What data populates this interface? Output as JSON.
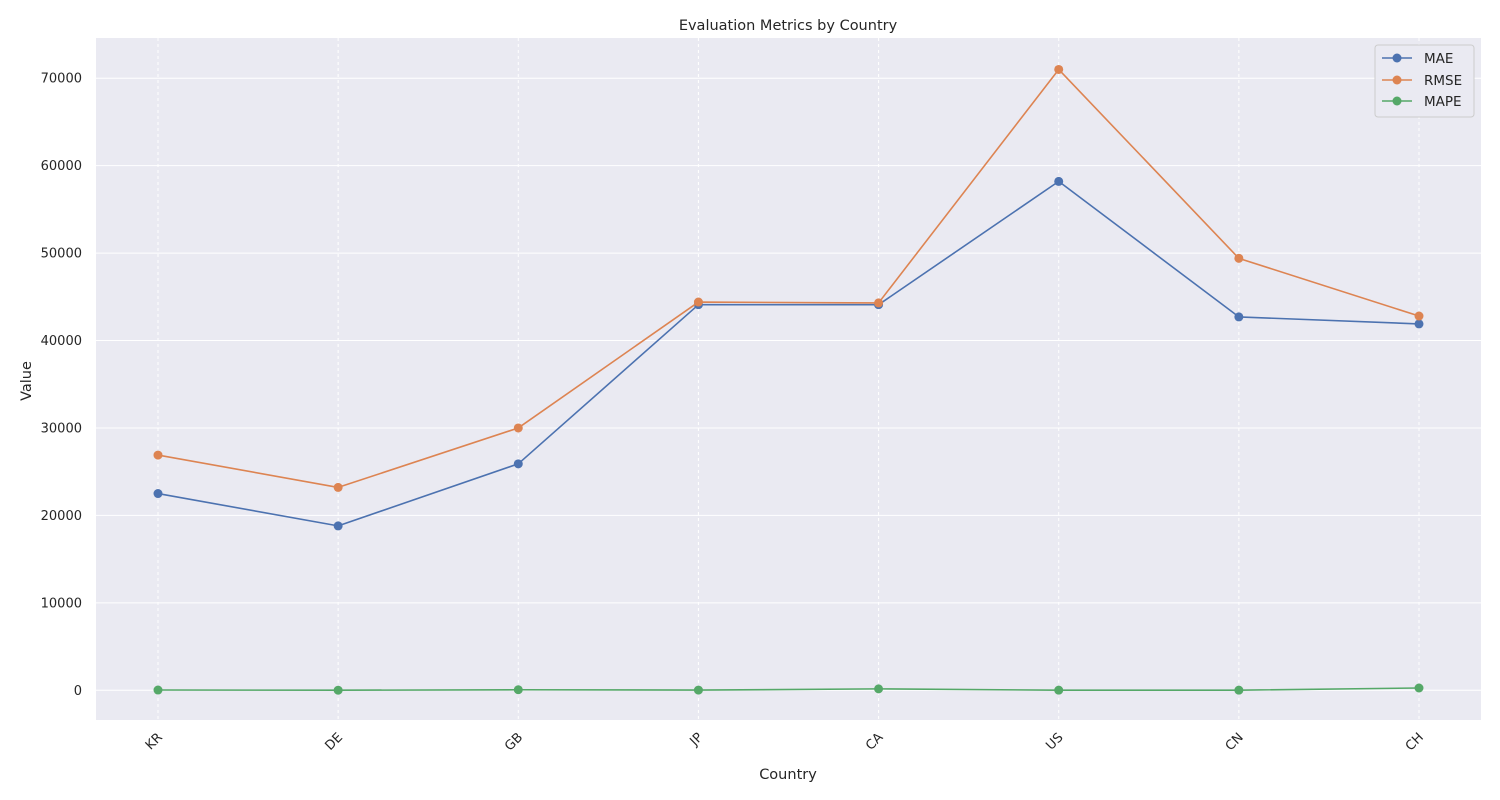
{
  "chart_data": {
    "type": "line",
    "title": "Evaluation Metrics by Country",
    "xlabel": "Country",
    "ylabel": "Value",
    "categories": [
      "KR",
      "DE",
      "GB",
      "JP",
      "CA",
      "US",
      "CN",
      "CH"
    ],
    "ylim": [
      -3400,
      74600
    ],
    "yticks": [
      0,
      10000,
      20000,
      30000,
      40000,
      50000,
      60000,
      70000
    ],
    "grid": true,
    "legend_position": "top-right",
    "series": [
      {
        "name": "MAE",
        "color": "#4c72b0",
        "values": [
          22500,
          18800,
          25900,
          44100,
          44100,
          58200,
          42700,
          41900
        ]
      },
      {
        "name": "RMSE",
        "color": "#dd8452",
        "values": [
          26900,
          23200,
          30000,
          44400,
          44300,
          71000,
          49400,
          42800
        ]
      },
      {
        "name": "MAPE",
        "color": "#55a868",
        "values": [
          30,
          5,
          60,
          20,
          160,
          10,
          15,
          260
        ]
      }
    ]
  }
}
